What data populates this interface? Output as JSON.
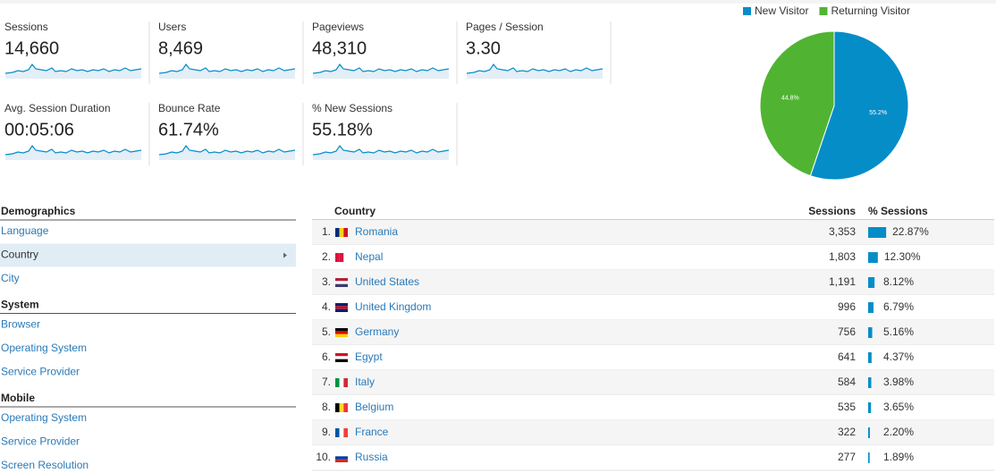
{
  "metrics": [
    {
      "label": "Sessions",
      "value": "14,660"
    },
    {
      "label": "Users",
      "value": "8,469"
    },
    {
      "label": "Pageviews",
      "value": "48,310"
    },
    {
      "label": "Pages / Session",
      "value": "3.30"
    },
    {
      "label": "Avg. Session Duration",
      "value": "00:05:06"
    },
    {
      "label": "Bounce Rate",
      "value": "61.74%"
    },
    {
      "label": "% New Sessions",
      "value": "55.18%"
    }
  ],
  "chart_data": {
    "type": "pie",
    "categories": [
      "New Visitor",
      "Returning Visitor"
    ],
    "values": [
      55.2,
      44.8
    ],
    "value_labels": [
      "55.2%",
      "44.8%"
    ],
    "colors": [
      "#058dc7",
      "#50b432"
    ]
  },
  "nav": [
    {
      "title": "Demographics",
      "items": [
        "Language",
        "Country",
        "City"
      ]
    },
    {
      "title": "System",
      "items": [
        "Browser",
        "Operating System",
        "Service Provider"
      ]
    },
    {
      "title": "Mobile",
      "items": [
        "Operating System",
        "Service Provider",
        "Screen Resolution"
      ]
    }
  ],
  "table": {
    "headers": [
      "Country",
      "Sessions",
      "% Sessions"
    ],
    "rows": [
      {
        "rank": "1.",
        "country": "Romania",
        "sessions": "3,353",
        "pct": 22.87,
        "pct_label": "22.87%"
      },
      {
        "rank": "2.",
        "country": "Nepal",
        "sessions": "1,803",
        "pct": 12.3,
        "pct_label": "12.30%"
      },
      {
        "rank": "3.",
        "country": "United States",
        "sessions": "1,191",
        "pct": 8.12,
        "pct_label": "8.12%"
      },
      {
        "rank": "4.",
        "country": "United Kingdom",
        "sessions": "996",
        "pct": 6.79,
        "pct_label": "6.79%"
      },
      {
        "rank": "5.",
        "country": "Germany",
        "sessions": "756",
        "pct": 5.16,
        "pct_label": "5.16%"
      },
      {
        "rank": "6.",
        "country": "Egypt",
        "sessions": "641",
        "pct": 4.37,
        "pct_label": "4.37%"
      },
      {
        "rank": "7.",
        "country": "Italy",
        "sessions": "584",
        "pct": 3.98,
        "pct_label": "3.98%"
      },
      {
        "rank": "8.",
        "country": "Belgium",
        "sessions": "535",
        "pct": 3.65,
        "pct_label": "3.65%"
      },
      {
        "rank": "9.",
        "country": "France",
        "sessions": "322",
        "pct": 2.2,
        "pct_label": "2.20%"
      },
      {
        "rank": "10.",
        "country": "Russia",
        "sessions": "277",
        "pct": 1.89,
        "pct_label": "1.89%"
      }
    ]
  }
}
